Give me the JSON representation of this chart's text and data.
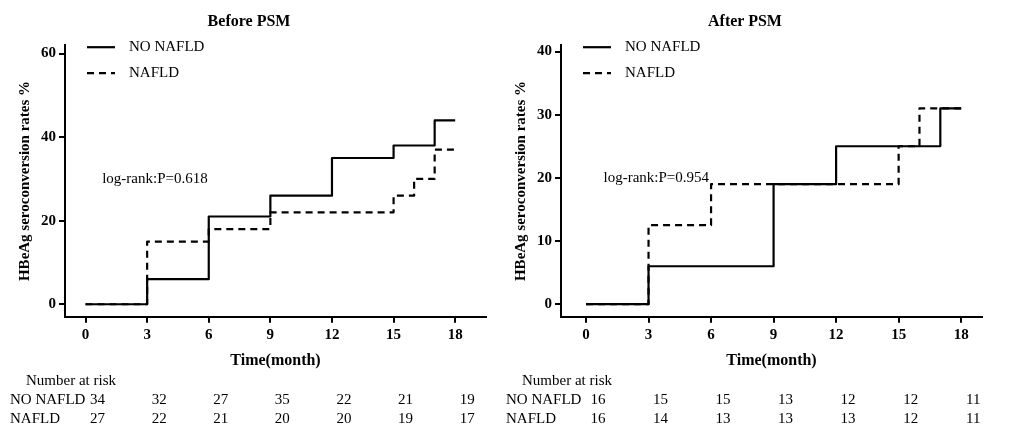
{
  "chart_data": [
    {
      "type": "step",
      "title": "Before PSM",
      "xlabel": "Time(month)",
      "ylabel": "HBeAg seroconversion rates %",
      "xlim": [
        -1,
        19.5
      ],
      "ylim": [
        -3,
        62
      ],
      "xticks": [
        0,
        3,
        6,
        9,
        12,
        15,
        18
      ],
      "yticks": [
        0,
        20,
        40,
        60
      ],
      "grid": false,
      "legend": "top left",
      "series": [
        {
          "name": "NO NAFLD",
          "color": "#000000",
          "line_style": "solid",
          "x": [
            0,
            3,
            6,
            9,
            12,
            15,
            17,
            18
          ],
          "values": [
            0,
            6,
            21,
            26,
            35,
            38,
            44,
            44
          ]
        },
        {
          "name": "NAFLD",
          "color": "#000000",
          "line_style": "dashed",
          "x": [
            0,
            3,
            6,
            9,
            15,
            16,
            17,
            18
          ],
          "values": [
            0,
            15,
            18,
            22,
            26,
            30,
            37,
            37
          ]
        }
      ],
      "annotations": [
        "log-rank:P=0.618",
        "Number at risk",
        "NO NAFLD",
        "34",
        "32",
        "27",
        "35",
        "22",
        "21",
        "19",
        "NAFLD",
        "27",
        "22",
        "21",
        "20",
        "20",
        "19",
        "17"
      ]
    },
    {
      "type": "step",
      "title": "After PSM",
      "xlabel": "Time(month)",
      "ylabel": "HBeAg seroconversion rates %",
      "xlim": [
        -1.2,
        19
      ],
      "ylim": [
        -2,
        41
      ],
      "xticks": [
        0,
        3,
        6,
        9,
        12,
        15,
        18
      ],
      "yticks": [
        0,
        10,
        20,
        30,
        40
      ],
      "grid": false,
      "legend": "top left",
      "series": [
        {
          "name": "NO NAFLD",
          "color": "#000000",
          "line_style": "solid",
          "x": [
            0,
            3,
            9,
            12,
            17,
            18
          ],
          "values": [
            0,
            6,
            19,
            25,
            31,
            31
          ]
        },
        {
          "name": "NAFLD",
          "color": "#000000",
          "line_style": "dashed",
          "x": [
            0,
            3,
            6,
            15,
            16,
            18
          ],
          "values": [
            0,
            12.5,
            19,
            25,
            31,
            31
          ]
        }
      ],
      "annotations": [
        "log-rank:P=0.954",
        "Number at risk",
        "NO NAFLD",
        "16",
        "15",
        "15",
        "13",
        "12",
        "12",
        "11",
        "NAFLD",
        "16",
        "14",
        "13",
        "13",
        "13",
        "12",
        "11"
      ]
    }
  ]
}
